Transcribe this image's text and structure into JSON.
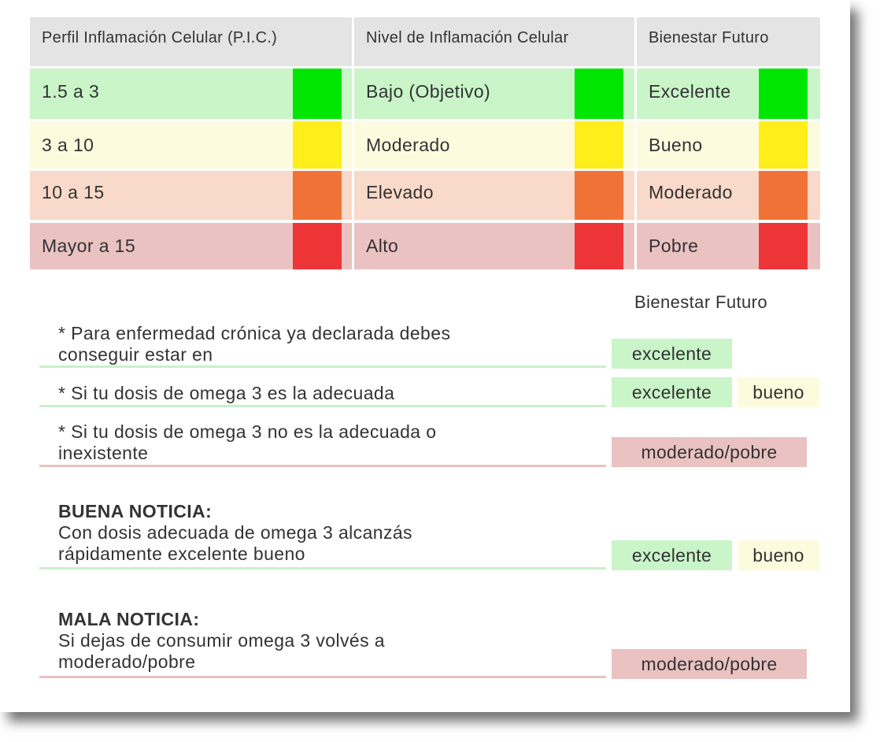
{
  "colors": {
    "header_bg": "#e4e4e4",
    "row_low_bg": "#c9f5c9",
    "row_moderate_bg": "#fdfbde",
    "row_elevated_bg": "#f9d9c9",
    "row_high_bg": "#eac2c2",
    "swatch_green": "#00e600",
    "swatch_yellow": "#ffee1a",
    "swatch_orange": "#f17237",
    "swatch_red": "#ee3538",
    "tag_green": "#c9f5c9",
    "tag_yellow": "#fdfbde",
    "tag_red": "#eac2c2",
    "line_green": "#c9f0c9",
    "line_red": "#eac2c2"
  },
  "table": {
    "headers": [
      "Perfil Inflamación Celular (P.I.C.)",
      "Nivel de Inflamación Celular",
      "Bienestar Futuro"
    ],
    "rows": [
      {
        "pic": "1.5 a 3",
        "nivel": "Bajo (Objetivo)",
        "bienestar": "Excelente",
        "color": "green"
      },
      {
        "pic": "3 a 10",
        "nivel": "Moderado",
        "bienestar": "Bueno",
        "color": "yellow"
      },
      {
        "pic": "10 a 15",
        "nivel": "Elevado",
        "bienestar": "Moderado",
        "color": "orange"
      },
      {
        "pic": "Mayor a 15",
        "nivel": "Alto",
        "bienestar": "Pobre",
        "color": "red"
      }
    ]
  },
  "notes": {
    "column_header": "Bienestar Futuro",
    "items": [
      {
        "line1": "* Para enfermedad crónica ya declarada debes",
        "line2": "conseguir estar en",
        "tags": [
          "excelente"
        ]
      },
      {
        "line1": "* Si tu dosis de omega 3 es la adecuada",
        "tags": [
          "excelente",
          "bueno"
        ]
      },
      {
        "line1": "* Si tu dosis de omega 3 no es la adecuada o",
        "line2": "inexistente",
        "tags": [
          "moderado/pobre"
        ]
      },
      {
        "heading": "BUENA NOTICIA:",
        "line1": "Con dosis adecuada de omega 3 alcanzás",
        "line2": "rápidamente excelente bueno",
        "tags": [
          "excelente",
          "bueno"
        ]
      },
      {
        "heading": "MALA NOTICIA:",
        "line1": "Si dejas de consumir omega 3 volvés a",
        "line2": "moderado/pobre",
        "tags": [
          "moderado/pobre"
        ]
      }
    ]
  }
}
